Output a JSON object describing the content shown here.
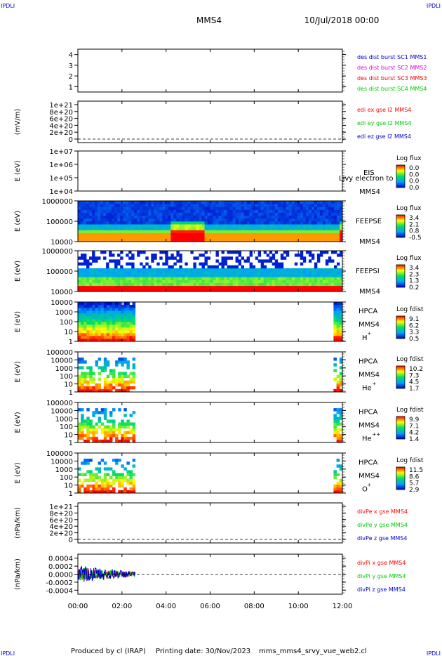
{
  "header": {
    "corner_label": "IPDLI",
    "spacecraft": "MMS4",
    "datetime": "10/Jul/2018 00:00"
  },
  "footer": {
    "produced_by": "Produced by cl (IRAP)",
    "printing_date": "Printing date: 30/Nov/2023",
    "filename": "mms_mms4_srvy_vue_web2.cl"
  },
  "colors": {
    "red": "#ff0000",
    "green": "#00cc00",
    "blue": "#0000cc",
    "magenta": "#dd00dd"
  },
  "chart_data": {
    "type": "stacked-timeseries",
    "x_ticks": [
      "00:00",
      "02:00",
      "04:00",
      "06:00",
      "08:00",
      "10:00",
      "12:00"
    ],
    "xlim_hours": [
      0,
      12
    ],
    "panels": [
      {
        "id": "burst",
        "type": "line",
        "ylim": [
          0.5,
          4.5
        ],
        "y_ticks": [
          "1",
          "2",
          "3",
          "4"
        ],
        "legend": [
          {
            "text": "des dist burst SC1 MMS1",
            "color": "#0000cc"
          },
          {
            "text": "des dist burst SC2 MMS2",
            "color": "#dd00dd"
          },
          {
            "text": "des dist burst SC3 MMS3",
            "color": "#ff0000"
          },
          {
            "text": "des dist burst SC4 MMS4",
            "color": "#00cc00"
          }
        ]
      },
      {
        "id": "edi",
        "type": "line",
        "ylabel": "(mV/m)",
        "y_ticks": [
          "0",
          "2e+20",
          "4e+20",
          "6e+20",
          "8e+20",
          "1e+21"
        ],
        "zero_line": true,
        "legend": [
          {
            "text": "edi ex gse l2 MMS4",
            "color": "#ff0000"
          },
          {
            "text": "edi ey gse l2 MMS4",
            "color": "#00cc00"
          },
          {
            "text": "edi ez gse l2 MMS4",
            "color": "#0000cc"
          }
        ]
      },
      {
        "id": "eis",
        "type": "heatmap",
        "ylabel": "E (eV)",
        "y_ticks": [
          "1e+04",
          "1e+05",
          "1e+06",
          "1e+07"
        ],
        "instrument": "EIS",
        "note": "Ljvy electron to",
        "spacecraft": "MMS4",
        "cbar_title": "Log flux",
        "cbar_ticks": [
          "0.0",
          "0.0",
          "0.0",
          "0.0"
        ],
        "empty": true
      },
      {
        "id": "feepse",
        "type": "heatmap",
        "ylabel": "E (eV)",
        "y_ticks": [
          "10000",
          "100000",
          "1000000"
        ],
        "instrument": "FEEPSE",
        "spacecraft": "MMS4",
        "cbar_title": "Log flux",
        "cbar_ticks": [
          "3.4",
          "2.1",
          "0.8",
          "-0.5"
        ],
        "coverage_hours": [
          0,
          12
        ],
        "enhancements_hours": [
          [
            4.1,
            5.7
          ],
          [
            11.8,
            12
          ]
        ]
      },
      {
        "id": "feepsi",
        "type": "heatmap",
        "ylabel": "E (eV)",
        "y_ticks": [
          "10000",
          "100000",
          "1000000"
        ],
        "instrument": "FEEPSI",
        "spacecraft": "MMS4",
        "cbar_title": "Log flux",
        "cbar_ticks": [
          "3.4",
          "2.3",
          "1.3",
          "0.2"
        ],
        "coverage_hours": [
          0,
          12
        ]
      },
      {
        "id": "hpca_h",
        "type": "heatmap",
        "ylabel": "E (eV)",
        "y_ticks": [
          "1",
          "10",
          "100",
          "1000",
          "10000"
        ],
        "instrument": "HPCA",
        "spacecraft": "MMS4",
        "species": "H",
        "charge": "+",
        "cbar_title": "Log fdist",
        "cbar_ticks": [
          "9.1",
          "6.2",
          "3.3",
          "0.5"
        ],
        "coverage_hours": [
          [
            0,
            2.6
          ],
          [
            11.6,
            12
          ]
        ]
      },
      {
        "id": "hpca_he1",
        "type": "heatmap",
        "ylabel": "E (eV)",
        "y_ticks": [
          "1",
          "10",
          "100",
          "1000",
          "10000",
          "100000"
        ],
        "instrument": "HPCA",
        "spacecraft": "MMS4",
        "species": "He",
        "charge": "+",
        "cbar_title": "Log fdist",
        "cbar_ticks": [
          "10.2",
          "7.3",
          "4.5",
          "1.7"
        ],
        "coverage_hours": [
          [
            0,
            2.6
          ],
          [
            11.6,
            12
          ]
        ]
      },
      {
        "id": "hpca_he2",
        "type": "heatmap",
        "ylabel": "E (eV)",
        "y_ticks": [
          "1",
          "10",
          "100",
          "1000",
          "10000",
          "100000"
        ],
        "instrument": "HPCA",
        "spacecraft": "MMS4",
        "species": "He",
        "charge": "++",
        "cbar_title": "Log fdist",
        "cbar_ticks": [
          "9.9",
          "7.1",
          "4.2",
          "1.4"
        ],
        "coverage_hours": [
          [
            0,
            2.6
          ],
          [
            11.6,
            12
          ]
        ]
      },
      {
        "id": "hpca_o",
        "type": "heatmap",
        "ylabel": "E (eV)",
        "y_ticks": [
          "1",
          "10",
          "100",
          "1000",
          "10000",
          "100000"
        ],
        "instrument": "HPCA",
        "spacecraft": "MMS4",
        "species": "O",
        "charge": "+",
        "cbar_title": "Log fdist",
        "cbar_ticks": [
          "11.5",
          "8.6",
          "5.7",
          "2.9"
        ],
        "coverage_hours": [
          [
            0,
            2.6
          ],
          [
            11.6,
            12
          ]
        ]
      },
      {
        "id": "divpe",
        "type": "line",
        "ylabel": "(nPa/km)",
        "y_ticks": [
          "0",
          "2e+20",
          "4e+20",
          "6e+20",
          "8e+20",
          "1e+21"
        ],
        "zero_line": true,
        "legend": [
          {
            "text": "divPe x gse MMS4",
            "color": "#ff0000"
          },
          {
            "text": "divPe y gse MMS4",
            "color": "#00cc00"
          },
          {
            "text": "divPe z gse MMS4",
            "color": "#0000cc"
          }
        ]
      },
      {
        "id": "divpi",
        "type": "line",
        "ylabel": "(nPa/km)",
        "y_ticks": [
          "-0.0004",
          "-0.0002",
          "0.0000",
          "0.0002",
          "0.0004"
        ],
        "ylim": [
          -0.0005,
          0.0005
        ],
        "zero_line": true,
        "coverage_hours": [
          0,
          2.6
        ],
        "legend": [
          {
            "text": "divPi x gse MMS4",
            "color": "#ff0000"
          },
          {
            "text": "divPi y gse MMS4",
            "color": "#00cc00"
          },
          {
            "text": "divPi z gse MMS4",
            "color": "#0000cc"
          }
        ]
      }
    ]
  }
}
